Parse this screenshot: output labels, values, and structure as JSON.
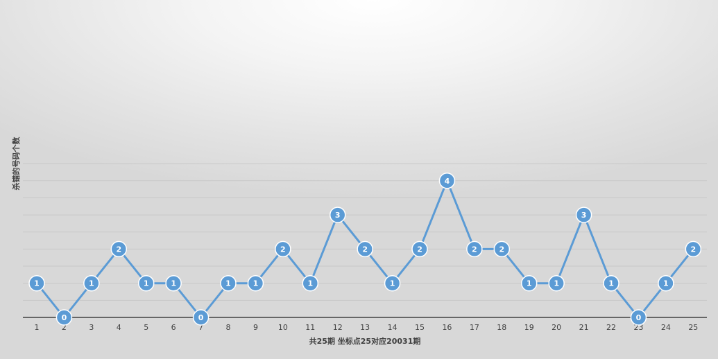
{
  "chart_data": {
    "type": "line",
    "title": "",
    "xlabel": "共25期   坐标点25对应20031期",
    "ylabel": "杀错的号码个数",
    "categories": [
      "1",
      "2",
      "3",
      "4",
      "5",
      "6",
      "7",
      "8",
      "9",
      "10",
      "11",
      "12",
      "13",
      "14",
      "15",
      "16",
      "17",
      "18",
      "19",
      "20",
      "21",
      "22",
      "23",
      "24",
      "25"
    ],
    "series": [
      {
        "values": [
          1,
          0,
          1,
          2,
          1,
          1,
          0,
          1,
          1,
          2,
          1,
          3,
          2,
          1,
          2,
          4,
          2,
          2,
          1,
          1,
          3,
          1,
          0,
          1,
          2
        ]
      }
    ],
    "ylim": [
      0,
      4.5
    ],
    "grid": true,
    "data_labels": true,
    "colors": {
      "series": "#5B9BD5",
      "grid": "#C8C8C8",
      "axis": "#404040",
      "label_text": "#FFFFFF"
    }
  }
}
